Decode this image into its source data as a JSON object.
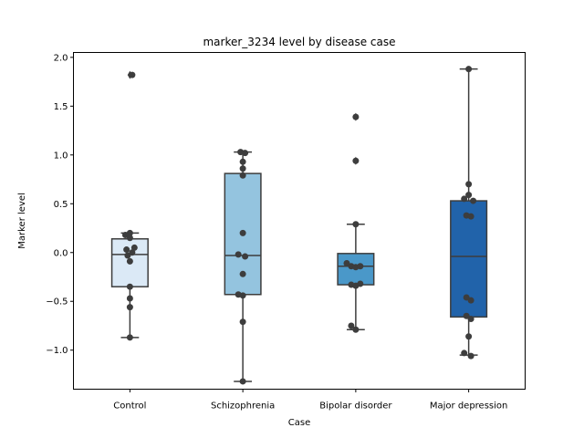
{
  "chart_data": {
    "type": "box",
    "title": "marker_3234 level by disease case",
    "xlabel": "Case",
    "ylabel": "Marker level",
    "ylim": [
      -1.4,
      2.05
    ],
    "yticks": [
      -1.0,
      -0.5,
      0.0,
      0.5,
      1.0,
      1.5,
      2.0
    ],
    "ytick_labels": [
      "−1.0",
      "−0.5",
      "0.0",
      "0.5",
      "1.0",
      "1.5",
      "2.0"
    ],
    "categories": [
      "Control",
      "Schizophrenia",
      "Bipolar disorder",
      "Major depression"
    ],
    "colors": [
      "#dbe9f6",
      "#94c4df",
      "#4a98c9",
      "#2163aa"
    ],
    "boxes": [
      {
        "q1": -0.35,
        "median": -0.02,
        "q3": 0.14,
        "whisker_low": -0.87,
        "whisker_high": 0.2,
        "fliers": [
          1.82
        ]
      },
      {
        "q1": -0.43,
        "median": -0.03,
        "q3": 0.81,
        "whisker_low": -1.32,
        "whisker_high": 1.03,
        "fliers": []
      },
      {
        "q1": -0.33,
        "median": -0.14,
        "q3": -0.01,
        "whisker_low": -0.79,
        "whisker_high": 0.29,
        "fliers": [
          1.39,
          0.94
        ]
      },
      {
        "q1": -0.66,
        "median": -0.04,
        "q3": 0.53,
        "whisker_low": -1.05,
        "whisker_high": 1.88,
        "fliers": []
      }
    ],
    "points": [
      [
        [
          0.02,
          1.82
        ],
        [
          0.0,
          0.2
        ],
        [
          -0.04,
          0.18
        ],
        [
          0.0,
          0.15
        ],
        [
          0.04,
          0.05
        ],
        [
          -0.03,
          0.03
        ],
        [
          0.02,
          0.0
        ],
        [
          -0.02,
          -0.03
        ],
        [
          0.0,
          -0.09
        ],
        [
          0.0,
          -0.35
        ],
        [
          0.0,
          -0.47
        ],
        [
          0.0,
          -0.56
        ],
        [
          0.0,
          -0.87
        ]
      ],
      [
        [
          -0.02,
          1.03
        ],
        [
          0.02,
          1.02
        ],
        [
          0.0,
          0.93
        ],
        [
          0.0,
          0.86
        ],
        [
          0.0,
          0.79
        ],
        [
          0.0,
          0.2
        ],
        [
          -0.04,
          -0.02
        ],
        [
          0.02,
          -0.04
        ],
        [
          0.0,
          -0.22
        ],
        [
          -0.04,
          -0.43
        ],
        [
          0.0,
          -0.44
        ],
        [
          0.0,
          -0.71
        ],
        [
          0.0,
          -1.32
        ]
      ],
      [
        [
          0.0,
          1.39
        ],
        [
          0.0,
          0.94
        ],
        [
          0.0,
          0.29
        ],
        [
          -0.08,
          -0.11
        ],
        [
          -0.04,
          -0.14
        ],
        [
          0.0,
          -0.15
        ],
        [
          0.04,
          -0.14
        ],
        [
          -0.04,
          -0.33
        ],
        [
          0.0,
          -0.34
        ],
        [
          0.04,
          -0.32
        ],
        [
          -0.04,
          -0.75
        ],
        [
          0.0,
          -0.79
        ]
      ],
      [
        [
          0.0,
          1.88
        ],
        [
          0.0,
          0.7
        ],
        [
          0.0,
          0.59
        ],
        [
          -0.04,
          0.55
        ],
        [
          0.04,
          0.53
        ],
        [
          -0.02,
          0.38
        ],
        [
          0.02,
          0.37
        ],
        [
          -0.02,
          -0.46
        ],
        [
          0.02,
          -0.49
        ],
        [
          -0.02,
          -0.65
        ],
        [
          0.02,
          -0.68
        ],
        [
          0.0,
          -0.86
        ],
        [
          -0.04,
          -1.03
        ],
        [
          0.02,
          -1.06
        ]
      ]
    ]
  }
}
